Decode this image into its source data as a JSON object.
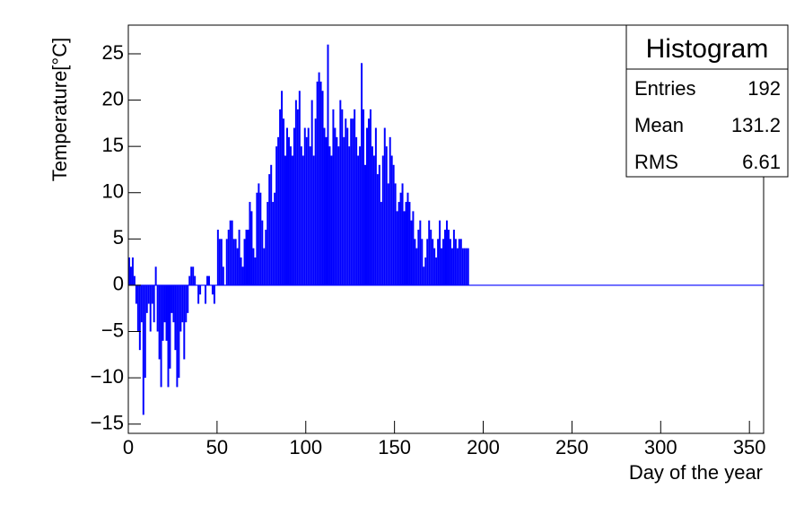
{
  "chart_data": {
    "type": "histogram",
    "color": "#0000ff",
    "xlabel": "Day of the year",
    "ylabel": "Temperature[°C]",
    "xlim": [
      0,
      358
    ],
    "ylim": [
      -16,
      28.1
    ],
    "xticks": [
      0,
      50,
      100,
      150,
      200,
      250,
      300,
      350
    ],
    "yticks": [
      {
        "value": -15,
        "label": "−15"
      },
      {
        "value": -10,
        "label": "−10"
      },
      {
        "value": -5,
        "label": "−5"
      },
      0,
      5,
      10,
      15,
      20,
      25
    ],
    "bins": [
      0,
      1,
      2,
      3,
      4,
      5,
      6,
      7,
      8,
      9,
      10,
      11,
      12,
      13,
      14,
      15,
      16,
      17,
      18,
      19,
      20,
      21,
      22,
      23,
      24,
      25,
      26,
      27,
      28,
      29,
      30,
      31,
      32,
      33,
      34,
      35,
      36,
      37,
      38,
      39,
      40,
      41,
      42,
      43,
      44,
      45,
      46,
      47,
      48,
      49,
      50,
      51,
      52,
      53,
      54,
      55,
      56,
      57,
      58,
      59,
      60,
      61,
      62,
      63,
      64,
      65,
      66,
      67,
      68,
      69,
      70,
      71,
      72,
      73,
      74,
      75,
      76,
      77,
      78,
      79,
      80,
      81,
      82,
      83,
      84,
      85,
      86,
      87,
      88,
      89,
      90,
      91,
      92,
      93,
      94,
      95,
      96,
      97,
      98,
      99,
      100,
      101,
      102,
      103,
      104,
      105,
      106,
      107,
      108,
      109,
      110,
      111,
      112,
      113,
      114,
      115,
      116,
      117,
      118,
      119,
      120,
      121,
      122,
      123,
      124,
      125,
      126,
      127,
      128,
      129,
      130,
      131,
      132,
      133,
      134,
      135,
      136,
      137,
      138,
      139,
      140,
      141,
      142,
      143,
      144,
      145,
      146,
      147,
      148,
      149,
      150,
      151,
      152,
      153,
      154,
      155,
      156,
      157,
      158,
      159,
      160,
      161,
      162,
      163,
      164,
      165,
      166,
      167,
      168,
      169,
      170,
      171,
      172,
      173,
      174,
      175,
      176,
      177,
      178,
      179,
      180,
      181,
      182,
      183,
      184,
      185,
      186,
      187,
      188,
      189,
      190,
      191,
      192
    ],
    "values": [
      3,
      2,
      3,
      1,
      -2,
      -5,
      -7,
      -4,
      -14,
      -10,
      -3,
      -2,
      -5,
      -2,
      -4,
      2,
      -5,
      -8,
      -11,
      -6,
      -4,
      -6,
      -11,
      -9,
      -3,
      -4,
      -7,
      -11,
      -10,
      -5,
      -4,
      -8,
      -4,
      -3,
      1,
      2,
      2,
      1,
      0,
      -2,
      -1,
      0,
      0,
      -2,
      1,
      1,
      0,
      -1,
      -2,
      0,
      6,
      5,
      5,
      2,
      0,
      5,
      6,
      7,
      7,
      5,
      5,
      4,
      6,
      3,
      2,
      5,
      6,
      6,
      9,
      8,
      4,
      3,
      10,
      11,
      10,
      7,
      4,
      6,
      9,
      12,
      13,
      9,
      10,
      15,
      16,
      19,
      21,
      18,
      14,
      17,
      16,
      15,
      14,
      17,
      20,
      19,
      21,
      15,
      14,
      17,
      16,
      17,
      15,
      20,
      14,
      18,
      22,
      23,
      22,
      21,
      17,
      16,
      26,
      15,
      14,
      19,
      17,
      16,
      15,
      20,
      19,
      16,
      18,
      17,
      15,
      18,
      18,
      19,
      16,
      14,
      15,
      24,
      19,
      13,
      17,
      18,
      19,
      15,
      14,
      17,
      12,
      13,
      9,
      14,
      17,
      15,
      11,
      16,
      14,
      13,
      11,
      8,
      9,
      10,
      11,
      8,
      9,
      10,
      9,
      7,
      8,
      5,
      4,
      6,
      7,
      5,
      2,
      3,
      5,
      7,
      6,
      5,
      4,
      3,
      5,
      7,
      4,
      5,
      6,
      7,
      6,
      5,
      4,
      6,
      5,
      4,
      5,
      5,
      4,
      4,
      4,
      4
    ],
    "stats": {
      "title": "Histogram",
      "rows": [
        [
          "Entries",
          192
        ],
        [
          "Mean",
          131.2
        ],
        [
          "RMS",
          6.61
        ]
      ]
    }
  }
}
